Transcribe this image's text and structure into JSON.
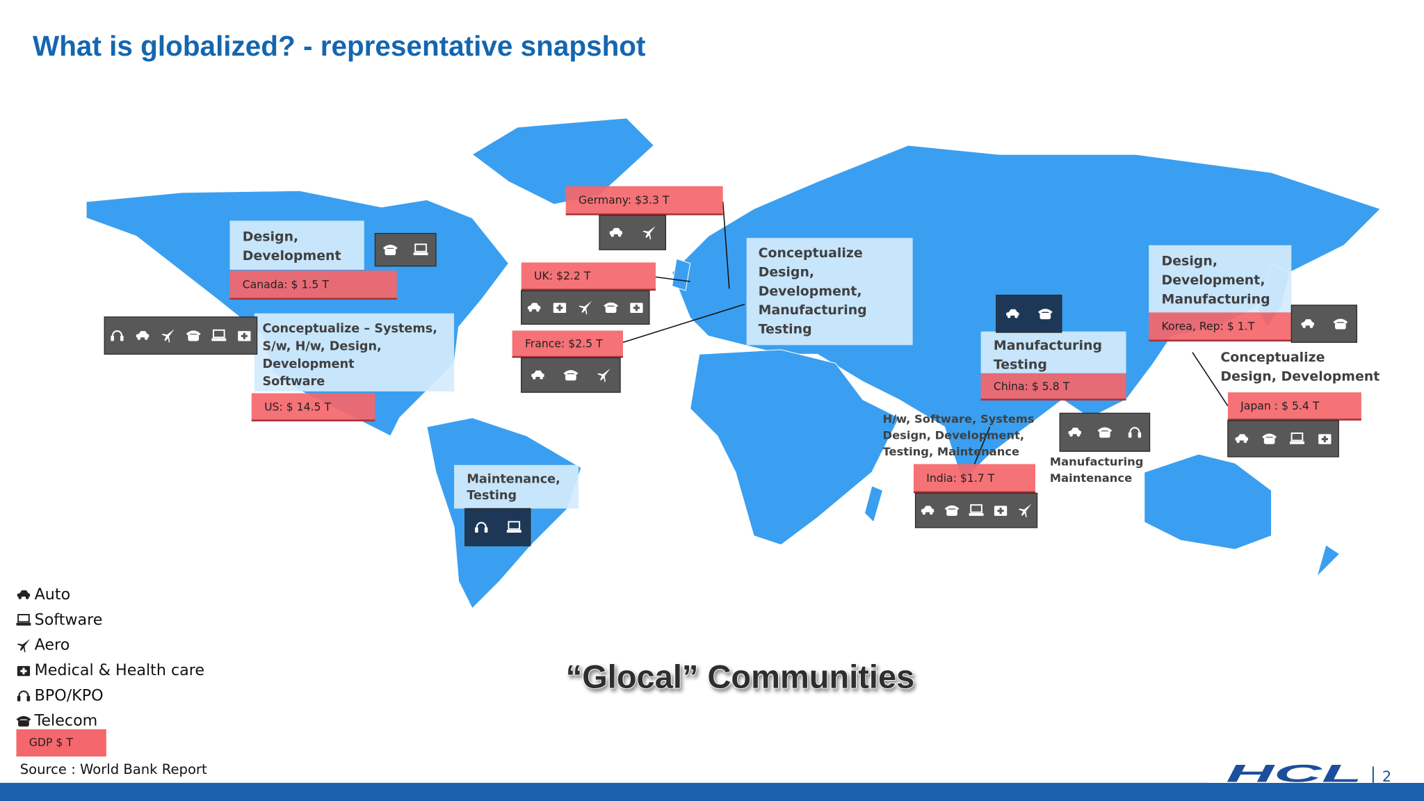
{
  "title": "What is globalized? -  representative snapshot",
  "regions": [
    {
      "lines": [
        "Design,",
        "Development"
      ],
      "gdp": "Canada: $ 1.5 T"
    },
    {
      "lines": [
        "Conceptualize – Systems,",
        "S/w, H/w, Design,",
        "Development",
        "Software"
      ],
      "gdp": "US: $ 14.5 T"
    },
    {
      "lines": [
        "Maintenance,",
        "Testing"
      ]
    },
    {
      "gdp": "Germany: $3.3 T"
    },
    {
      "gdp": "UK: $2.2 T"
    },
    {
      "gdp": "France: $2.5 T"
    },
    {
      "lines": [
        "Conceptualize",
        "Design,",
        "Development,",
        "Manufacturing",
        "Testing"
      ]
    },
    {
      "lines": [
        "Manufacturing",
        "Testing"
      ],
      "gdp": "China: $ 5.8 T"
    },
    {
      "lines": [
        "H/w, Software, Systems",
        "Design,  Development,",
        "Testing, Maintenance"
      ],
      "gdp": "India: $1.7 T"
    },
    {
      "lines": [
        "Manufacturing",
        "Maintenance"
      ]
    },
    {
      "lines": [
        "Design,",
        "Development,",
        "Manufacturing"
      ],
      "gdp": "Korea, Rep: $ 1.T"
    },
    {
      "lines": [
        "Conceptualize",
        "Design, Development"
      ],
      "gdp": "Japan : $ 5.4 T"
    }
  ],
  "legend": [
    "Auto",
    "Software",
    "Aero",
    "Medical & Health care",
    "BPO/KPO",
    "Telecom"
  ],
  "legend_gdp": "GDP $ T",
  "tagline": "“Glocal” Communities",
  "source": "Source : World Bank Report",
  "logo": "HCL",
  "page_number": "2"
}
